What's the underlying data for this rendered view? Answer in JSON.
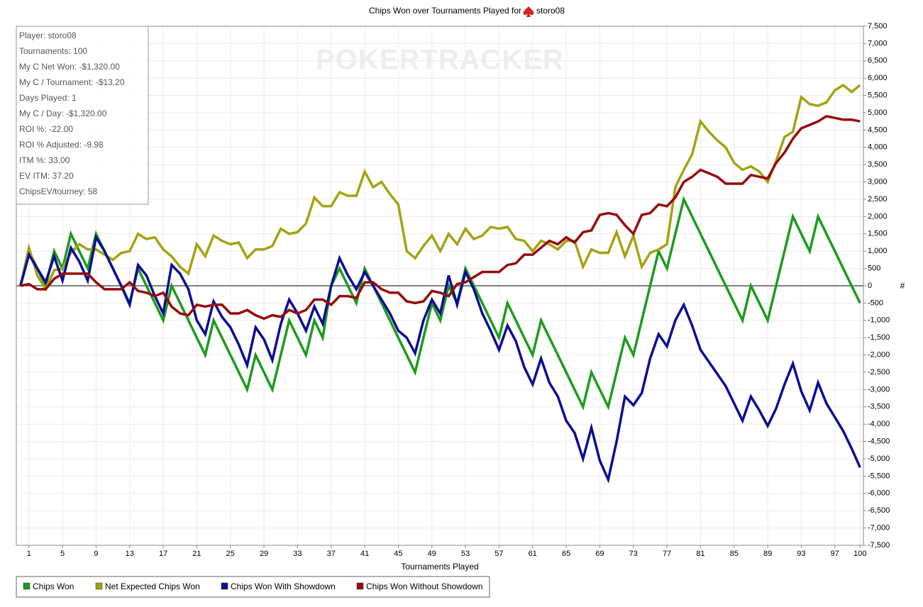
{
  "chart_data": {
    "type": "line",
    "title": "Chips Won over Tournaments Played for",
    "player": "storo08",
    "watermark": "POKERTRACKER",
    "x_label": "Tournaments Played",
    "y_label": "#",
    "stats": [
      "Player: storo08",
      "Tournaments: 100",
      "My C Net Won: -$1,320.00",
      "My C / Tournament: -$13.20",
      "Days Played: 1",
      "My C / Day: -$1,320.00",
      "ROI %: -22.00",
      "ROI % Adjusted: -9.98",
      "ITM %: 33.00",
      "EV ITM: 37.20",
      "ChipsEV/tourney: 58"
    ],
    "x": [
      0,
      1,
      2,
      3,
      4,
      5,
      6,
      7,
      8,
      9,
      10,
      11,
      12,
      13,
      14,
      15,
      16,
      17,
      18,
      19,
      20,
      21,
      22,
      23,
      24,
      25,
      26,
      27,
      28,
      29,
      30,
      31,
      32,
      33,
      34,
      35,
      36,
      37,
      38,
      39,
      40,
      41,
      42,
      43,
      44,
      45,
      46,
      47,
      48,
      49,
      50,
      51,
      52,
      53,
      54,
      55,
      56,
      57,
      58,
      59,
      60,
      61,
      62,
      63,
      64,
      65,
      66,
      67,
      68,
      69,
      70,
      71,
      72,
      73,
      74,
      75,
      76,
      77,
      78,
      79,
      80,
      81,
      82,
      83,
      84,
      85,
      86,
      87,
      88,
      89,
      90,
      91,
      92,
      93,
      94,
      95,
      96,
      97,
      98,
      99,
      100
    ],
    "series": [
      {
        "name": "Chips Won",
        "color": "#1c9c1c",
        "values": [
          0,
          1000,
          500,
          0,
          1000,
          500,
          1500,
          1000,
          500,
          1500,
          1000,
          500,
          0,
          -500,
          500,
          0,
          -500,
          -1000,
          0,
          -500,
          -1000,
          -1500,
          -2000,
          -1000,
          -1500,
          -2000,
          -2500,
          -3000,
          -2000,
          -2500,
          -3000,
          -2000,
          -1000,
          -1500,
          -2000,
          -1000,
          -1500,
          0,
          500,
          0,
          -500,
          500,
          0,
          -500,
          -1000,
          -1500,
          -2000,
          -2500,
          -1500,
          -500,
          -1000,
          0,
          -500,
          500,
          0,
          -500,
          -1000,
          -1500,
          -500,
          -1000,
          -1500,
          -2000,
          -1000,
          -1500,
          -2000,
          -2500,
          -3000,
          -3500,
          -2500,
          -3000,
          -3500,
          -2500,
          -1500,
          -2000,
          -1000,
          0,
          1000,
          500,
          1500,
          2500,
          2000,
          1500,
          1000,
          500,
          0,
          -500,
          -1000,
          0,
          -500,
          -1000,
          0,
          1000,
          2000,
          1500,
          1000,
          2000,
          1500,
          1000,
          500,
          0,
          -500
        ]
      },
      {
        "name": "Net Expected Chips Won",
        "color": "#a3a312",
        "values": [
          0,
          1100,
          300,
          -100,
          450,
          500,
          950,
          1200,
          1050,
          1050,
          900,
          750,
          950,
          1000,
          1500,
          1350,
          1400,
          1050,
          850,
          550,
          350,
          1200,
          850,
          1450,
          1300,
          1200,
          1250,
          800,
          1050,
          1050,
          1150,
          1650,
          1500,
          1550,
          1800,
          2550,
          2300,
          2300,
          2700,
          2600,
          2600,
          3300,
          2850,
          3000,
          2650,
          2350,
          1000,
          800,
          1150,
          1450,
          1000,
          1500,
          1200,
          1650,
          1350,
          1450,
          1700,
          1650,
          1700,
          1350,
          1300,
          1000,
          1300,
          1200,
          1050,
          1300,
          1300,
          550,
          1050,
          950,
          950,
          1550,
          850,
          1450,
          550,
          950,
          1050,
          1200,
          2850,
          3350,
          3800,
          4750,
          4450,
          4200,
          4000,
          3550,
          3350,
          3450,
          3300,
          3000,
          3600,
          4300,
          4450,
          5450,
          5250,
          5200,
          5300,
          5650,
          5800,
          5600,
          5800
        ]
      },
      {
        "name": "Chips Won With Showdown",
        "color": "#0c0c96",
        "values": [
          0,
          900,
          500,
          100,
          850,
          150,
          1100,
          700,
          150,
          1400,
          1000,
          500,
          0,
          -550,
          600,
          300,
          -300,
          -800,
          600,
          350,
          -100,
          -1000,
          -1400,
          -450,
          -900,
          -1200,
          -1700,
          -2300,
          -1200,
          -1550,
          -2150,
          -1100,
          -400,
          -800,
          -1300,
          -600,
          -1100,
          0,
          800,
          300,
          -100,
          400,
          0,
          -400,
          -800,
          -1300,
          -1500,
          -1950,
          -1000,
          -400,
          -800,
          300,
          -550,
          400,
          -100,
          -800,
          -1300,
          -1850,
          -1150,
          -1600,
          -2350,
          -2850,
          -2100,
          -2800,
          -3200,
          -3900,
          -4250,
          -5000,
          -4100,
          -5050,
          -5600,
          -4500,
          -3200,
          -3450,
          -3100,
          -2100,
          -1400,
          -1750,
          -1000,
          -550,
          -1150,
          -1850,
          -2200,
          -2550,
          -2900,
          -3400,
          -3900,
          -3200,
          -3600,
          -4050,
          -3550,
          -2850,
          -2250,
          -3050,
          -3600,
          -2800,
          -3400,
          -3800,
          -4200,
          -4700,
          -5250
        ]
      },
      {
        "name": "Chips Won Without Showdown",
        "color": "#960c0c",
        "values": [
          0,
          50,
          -100,
          -100,
          200,
          350,
          350,
          350,
          350,
          100,
          -100,
          -100,
          -100,
          100,
          -150,
          -200,
          -300,
          -200,
          -600,
          -800,
          -850,
          -550,
          -600,
          -550,
          -550,
          -800,
          -800,
          -700,
          -850,
          -950,
          -850,
          -900,
          -700,
          -800,
          -700,
          -400,
          -400,
          -550,
          -300,
          -300,
          -350,
          100,
          100,
          -100,
          -200,
          -200,
          -450,
          -500,
          -450,
          -150,
          -200,
          -300,
          50,
          100,
          250,
          400,
          400,
          400,
          600,
          650,
          900,
          900,
          1100,
          1300,
          1200,
          1400,
          1250,
          1550,
          1600,
          2050,
          2100,
          2050,
          1750,
          1500,
          2050,
          2100,
          2350,
          2300,
          2550,
          3000,
          3150,
          3350,
          3250,
          3150,
          2950,
          2950,
          2950,
          3200,
          3150,
          3100,
          3550,
          3850,
          4250,
          4550,
          4650,
          4750,
          4900,
          4850,
          4800,
          4800,
          4750
        ]
      }
    ],
    "xlim": [
      -0.5,
      100.4
    ],
    "xticks": [
      1,
      5,
      9,
      13,
      17,
      21,
      25,
      29,
      33,
      37,
      41,
      45,
      49,
      53,
      57,
      61,
      65,
      69,
      73,
      77,
      81,
      85,
      89,
      93,
      97,
      100
    ],
    "ylim": [
      -7500,
      7500
    ],
    "yticks": [
      {
        "value": -7500,
        "label": "-7,500"
      },
      {
        "value": -7000,
        "label": "-7,000"
      },
      {
        "value": -6500,
        "label": "-6,500"
      },
      {
        "value": -6000,
        "label": "-6,000"
      },
      {
        "value": -5500,
        "label": "-5,500"
      },
      {
        "value": -5000,
        "label": "-5,000"
      },
      {
        "value": -4500,
        "label": "-4,500"
      },
      {
        "value": -4000,
        "label": "-4,000"
      },
      {
        "value": -3500,
        "label": "-3,500"
      },
      {
        "value": -3000,
        "label": "-3,000"
      },
      {
        "value": -2500,
        "label": "-2,500"
      },
      {
        "value": -2000,
        "label": "-2,000"
      },
      {
        "value": -1500,
        "label": "-1,500"
      },
      {
        "value": -1000,
        "label": "-1,000"
      },
      -500,
      0,
      500,
      {
        "value": 1000,
        "label": "1,000"
      },
      {
        "value": 1500,
        "label": "1,500"
      },
      {
        "value": 2000,
        "label": "2,000"
      },
      {
        "value": 2500,
        "label": "2,500"
      },
      {
        "value": 3000,
        "label": "3,000"
      },
      {
        "value": 3500,
        "label": "3,500"
      },
      {
        "value": 4000,
        "label": "4,000"
      },
      {
        "value": 4500,
        "label": "4,500"
      },
      {
        "value": 5000,
        "label": "5,000"
      },
      {
        "value": 5500,
        "label": "5,500"
      },
      {
        "value": 6000,
        "label": "6,000"
      },
      {
        "value": 6500,
        "label": "6,500"
      },
      {
        "value": 7000,
        "label": "7,000"
      },
      {
        "value": 7500,
        "label": "7,500"
      }
    ],
    "grid": true
  }
}
